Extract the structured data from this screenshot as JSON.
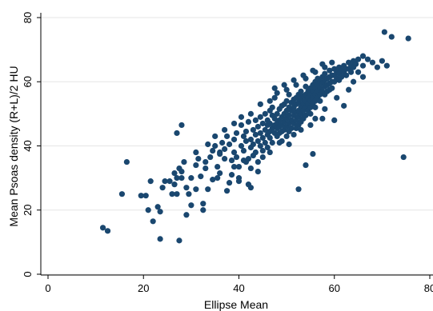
{
  "chart_data": {
    "type": "scatter",
    "xlabel": "Ellipse Mean",
    "ylabel": "Mean Psoas density (R+L)/2  HU",
    "xlim": [
      0,
      80
    ],
    "ylim": [
      0,
      80
    ],
    "xticks": [
      "0",
      "20",
      "40",
      "60",
      "80"
    ],
    "yticks": [
      "0",
      "20",
      "40",
      "60",
      "80"
    ],
    "grid": "horizontal",
    "marker_color": "#1a476f",
    "points": [
      [
        11.5,
        14.5
      ],
      [
        12.5,
        13.5
      ],
      [
        15.5,
        25
      ],
      [
        16.5,
        35
      ],
      [
        19.5,
        24.5
      ],
      [
        20.5,
        24.5
      ],
      [
        21,
        20
      ],
      [
        21.5,
        29
      ],
      [
        22,
        16.5
      ],
      [
        23,
        21
      ],
      [
        23.5,
        19.5
      ],
      [
        23.5,
        11
      ],
      [
        24,
        27
      ],
      [
        24.5,
        29
      ],
      [
        25.5,
        29
      ],
      [
        26,
        25
      ],
      [
        26.5,
        28
      ],
      [
        26.5,
        31.5
      ],
      [
        27,
        30
      ],
      [
        27,
        25
      ],
      [
        27.5,
        10.5
      ],
      [
        27.5,
        33
      ],
      [
        28,
        32
      ],
      [
        28,
        30
      ],
      [
        28.5,
        35
      ],
      [
        28,
        46.5
      ],
      [
        27,
        44
      ],
      [
        29,
        27
      ],
      [
        29,
        18.5
      ],
      [
        29.5,
        25
      ],
      [
        30,
        30
      ],
      [
        30,
        21.5
      ],
      [
        31,
        34
      ],
      [
        31,
        26.5
      ],
      [
        31.5,
        36
      ],
      [
        32,
        30.5
      ],
      [
        32.5,
        22
      ],
      [
        32.5,
        20
      ],
      [
        33,
        33
      ],
      [
        33,
        35
      ],
      [
        33.5,
        26.5
      ],
      [
        34,
        36.5
      ],
      [
        34.5,
        38.5
      ],
      [
        35,
        40
      ],
      [
        35.5,
        33.5
      ],
      [
        36,
        38
      ],
      [
        36,
        31.5
      ],
      [
        36.5,
        41
      ],
      [
        37,
        36
      ],
      [
        37,
        39
      ],
      [
        37.5,
        43
      ],
      [
        37.5,
        26
      ],
      [
        38,
        40.5
      ],
      [
        38.5,
        35.5
      ],
      [
        38.5,
        31
      ],
      [
        39,
        42
      ],
      [
        39,
        38
      ],
      [
        39.5,
        36.5
      ],
      [
        39.5,
        44
      ],
      [
        40,
        30
      ],
      [
        40,
        33.5
      ],
      [
        40.5,
        40
      ],
      [
        40.5,
        46.5
      ],
      [
        41,
        38.5
      ],
      [
        41,
        35.5
      ],
      [
        41,
        43
      ],
      [
        41.5,
        41.5
      ],
      [
        41.5,
        44.5
      ],
      [
        42,
        28
      ],
      [
        42,
        36
      ],
      [
        42,
        47.5
      ],
      [
        42.5,
        39.5
      ],
      [
        42.5,
        42
      ],
      [
        42.5,
        33
      ],
      [
        43,
        45
      ],
      [
        43,
        40.5
      ],
      [
        43,
        37
      ],
      [
        43.5,
        48
      ],
      [
        43.5,
        43.5
      ],
      [
        43.5,
        38
      ],
      [
        44,
        46
      ],
      [
        44,
        41.5
      ],
      [
        44,
        35
      ],
      [
        44.5,
        49
      ],
      [
        44.5,
        44
      ],
      [
        44.5,
        40
      ],
      [
        45,
        47
      ],
      [
        45,
        42.5
      ],
      [
        45,
        36.5
      ],
      [
        45,
        38.5
      ],
      [
        45.5,
        50
      ],
      [
        45.5,
        45
      ],
      [
        45.5,
        41
      ],
      [
        46,
        48
      ],
      [
        46,
        43.5
      ],
      [
        46,
        39.5
      ],
      [
        46,
        46.5
      ],
      [
        46.5,
        51
      ],
      [
        46.5,
        47
      ],
      [
        46.5,
        42.5
      ],
      [
        46.5,
        44.5
      ],
      [
        47,
        49.5
      ],
      [
        47,
        45.5
      ],
      [
        47,
        41
      ],
      [
        47,
        52
      ],
      [
        47.5,
        48.5
      ],
      [
        47.5,
        44
      ],
      [
        47.5,
        46.5
      ],
      [
        47.5,
        55
      ],
      [
        48,
        50
      ],
      [
        48,
        47
      ],
      [
        48,
        43
      ],
      [
        48,
        45.5
      ],
      [
        48.5,
        51.5
      ],
      [
        48.5,
        48
      ],
      [
        48.5,
        44
      ],
      [
        48.5,
        46
      ],
      [
        49,
        52.5
      ],
      [
        49,
        49
      ],
      [
        49,
        46.5
      ],
      [
        49,
        44.5
      ],
      [
        49,
        41.5
      ],
      [
        49.5,
        53
      ],
      [
        49.5,
        50
      ],
      [
        49.5,
        47.5
      ],
      [
        49.5,
        45
      ],
      [
        50,
        54
      ],
      [
        50,
        51
      ],
      [
        50,
        48.5
      ],
      [
        50,
        46
      ],
      [
        50,
        43
      ],
      [
        50.5,
        52
      ],
      [
        50.5,
        49.5
      ],
      [
        50.5,
        47
      ],
      [
        50.5,
        44.5
      ],
      [
        50.5,
        56
      ],
      [
        51,
        53.5
      ],
      [
        51,
        51
      ],
      [
        51,
        48
      ],
      [
        51,
        45.5
      ],
      [
        51.5,
        54.5
      ],
      [
        51.5,
        52
      ],
      [
        51.5,
        49.5
      ],
      [
        51.5,
        47
      ],
      [
        51.5,
        43.5
      ],
      [
        52,
        55
      ],
      [
        52,
        53
      ],
      [
        52,
        50.5
      ],
      [
        52,
        48
      ],
      [
        52,
        45.5
      ],
      [
        52.5,
        56
      ],
      [
        52.5,
        53.5
      ],
      [
        52.5,
        51
      ],
      [
        52.5,
        49
      ],
      [
        52.5,
        46.5
      ],
      [
        52.5,
        26.5
      ],
      [
        53,
        57
      ],
      [
        53,
        54.5
      ],
      [
        53,
        52
      ],
      [
        53,
        50
      ],
      [
        53,
        47.5
      ],
      [
        53.5,
        55.5
      ],
      [
        53.5,
        53
      ],
      [
        53.5,
        51
      ],
      [
        53.5,
        48.5
      ],
      [
        54,
        58.5
      ],
      [
        54,
        56
      ],
      [
        54,
        54
      ],
      [
        54,
        52
      ],
      [
        54,
        49.5
      ],
      [
        54,
        34
      ],
      [
        54.5,
        57
      ],
      [
        54.5,
        55
      ],
      [
        54.5,
        53
      ],
      [
        54.5,
        51
      ],
      [
        55,
        58
      ],
      [
        55,
        56
      ],
      [
        55,
        54
      ],
      [
        55,
        52
      ],
      [
        55,
        50
      ],
      [
        55.5,
        59
      ],
      [
        55.5,
        57
      ],
      [
        55.5,
        55
      ],
      [
        55.5,
        53
      ],
      [
        55.5,
        37.5
      ],
      [
        56,
        60
      ],
      [
        56,
        58
      ],
      [
        56,
        56
      ],
      [
        56,
        54
      ],
      [
        56,
        52
      ],
      [
        56.5,
        61
      ],
      [
        56.5,
        59
      ],
      [
        56.5,
        57
      ],
      [
        56.5,
        55
      ],
      [
        57,
        60
      ],
      [
        57,
        58
      ],
      [
        57,
        56
      ],
      [
        57,
        54
      ],
      [
        57.5,
        61.5
      ],
      [
        57.5,
        59.5
      ],
      [
        57.5,
        57
      ],
      [
        58,
        62.5
      ],
      [
        58,
        60.5
      ],
      [
        58,
        58.5
      ],
      [
        58,
        56
      ],
      [
        58.5,
        61
      ],
      [
        58.5,
        59
      ],
      [
        58.5,
        57
      ],
      [
        59,
        63.5
      ],
      [
        59,
        61.5
      ],
      [
        59,
        59.5
      ],
      [
        59,
        57.5
      ],
      [
        59.5,
        62
      ],
      [
        59.5,
        60
      ],
      [
        59.5,
        58
      ],
      [
        60,
        64
      ],
      [
        60,
        62
      ],
      [
        60,
        60
      ],
      [
        60.5,
        63
      ],
      [
        60.5,
        61
      ],
      [
        61,
        64.5
      ],
      [
        61,
        62.5
      ],
      [
        61,
        60.5
      ],
      [
        61.5,
        63.5
      ],
      [
        61.5,
        61.5
      ],
      [
        62,
        65
      ],
      [
        62,
        63
      ],
      [
        62.5,
        64
      ],
      [
        62.5,
        62
      ],
      [
        63,
        66
      ],
      [
        63,
        64
      ],
      [
        63.5,
        65
      ],
      [
        63.5,
        63
      ],
      [
        64,
        66.5
      ],
      [
        64,
        64.5
      ],
      [
        64.5,
        65.5
      ],
      [
        65,
        67
      ],
      [
        65,
        63
      ],
      [
        66,
        68
      ],
      [
        66,
        65
      ],
      [
        67,
        67
      ],
      [
        68,
        66
      ],
      [
        69,
        64.5
      ],
      [
        70,
        66.5
      ],
      [
        70.5,
        75.5
      ],
      [
        71,
        65
      ],
      [
        72,
        74
      ],
      [
        74.5,
        36.5
      ],
      [
        75.5,
        73.5
      ],
      [
        56,
        48.5
      ],
      [
        58,
        51.5
      ],
      [
        60,
        48
      ],
      [
        62,
        52.5
      ],
      [
        63,
        57.5
      ],
      [
        64,
        60
      ],
      [
        66,
        61.5
      ],
      [
        60.5,
        55
      ],
      [
        44,
        32
      ],
      [
        42.5,
        27
      ],
      [
        40,
        29
      ],
      [
        38,
        28.5
      ],
      [
        35.5,
        30
      ],
      [
        36,
        37.5
      ],
      [
        34.5,
        29.5
      ],
      [
        39,
        33.5
      ],
      [
        41.5,
        35
      ],
      [
        46.5,
        38
      ],
      [
        48.5,
        41
      ],
      [
        50.5,
        40.5
      ],
      [
        53,
        45
      ],
      [
        55,
        46.5
      ],
      [
        57.5,
        48.5
      ],
      [
        31,
        38
      ],
      [
        33.5,
        40.5
      ],
      [
        35,
        43
      ],
      [
        37,
        45
      ],
      [
        39,
        47
      ],
      [
        40.5,
        49
      ],
      [
        42.5,
        50
      ],
      [
        44.5,
        53
      ],
      [
        46.5,
        54
      ],
      [
        48,
        56.5
      ],
      [
        50,
        57.5
      ],
      [
        52,
        59
      ],
      [
        54,
        61
      ],
      [
        56,
        63
      ],
      [
        58,
        64.5
      ],
      [
        47.5,
        58
      ],
      [
        49.5,
        59
      ],
      [
        51.5,
        60.5
      ],
      [
        53.5,
        62
      ],
      [
        55.5,
        63.5
      ],
      [
        57.5,
        65.5
      ],
      [
        59.5,
        66
      ]
    ]
  }
}
